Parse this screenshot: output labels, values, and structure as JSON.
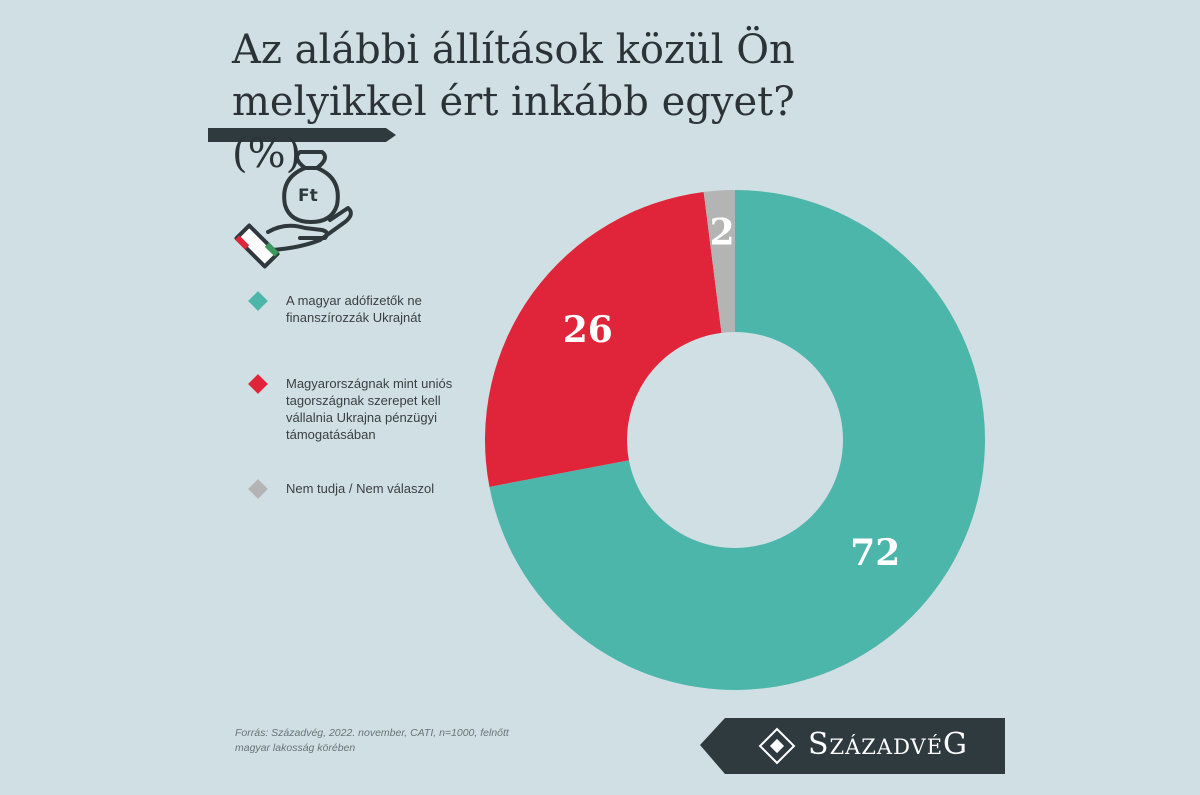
{
  "chart_data": {
    "type": "donut",
    "title": "Az alábbi állítások közül Ön melyikkel ért inkább egyet? (%)",
    "icon_text": "Ft",
    "categories": [
      "A magyar adófizetők ne finanszírozzák Ukrajnát",
      "Magyarországnak mint uniós tagországnak szerepet kell vállalnia Ukrajna pénzügyi támogatásában",
      "Nem tudja / Nem válaszol"
    ],
    "values": [
      72,
      26,
      2
    ],
    "colors": [
      "#4db6ab",
      "#e0253a",
      "#b4b4b4"
    ],
    "source": "Forrás: Századvég, 2022. november, CATI, n=1000, felnőtt magyar lakosság körében",
    "brand": "SzázadvéG"
  }
}
